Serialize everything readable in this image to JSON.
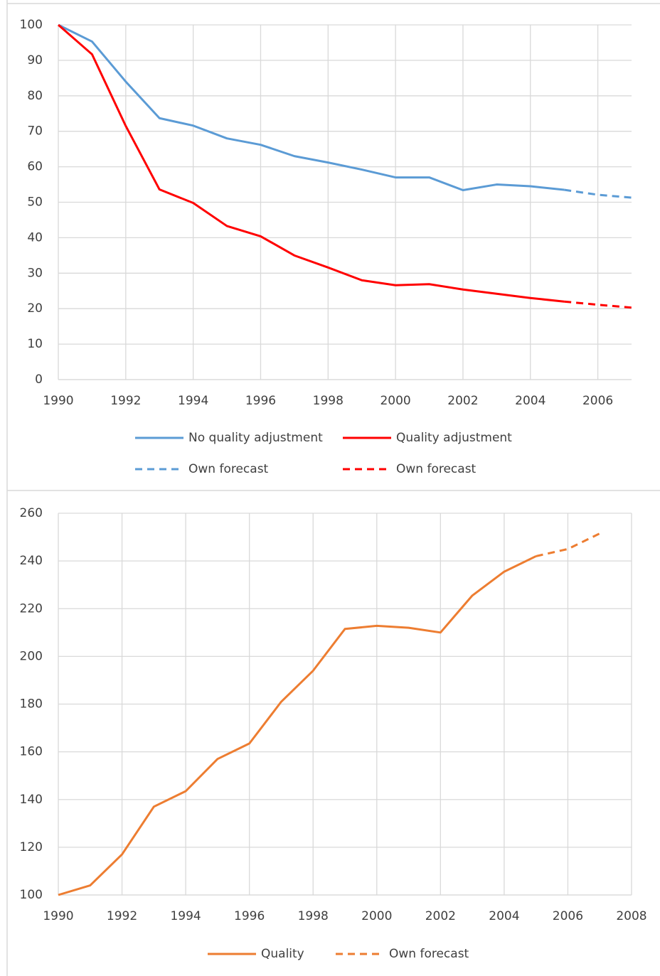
{
  "chart_data": [
    {
      "type": "line",
      "x": [
        1990,
        1991,
        1992,
        1993,
        1994,
        1995,
        1996,
        1997,
        1998,
        1999,
        2000,
        2001,
        2002,
        2003,
        2004,
        2005,
        2006,
        2007
      ],
      "xlim": [
        1990,
        2007
      ],
      "xticks": [
        1990,
        1992,
        1994,
        1996,
        1998,
        2000,
        2002,
        2004,
        2006
      ],
      "ylim": [
        0,
        100
      ],
      "yticks": [
        0,
        10,
        20,
        30,
        40,
        50,
        60,
        70,
        80,
        90,
        100
      ],
      "grid": true,
      "series": [
        {
          "name": "No quality adjustment",
          "color": "#5b9bd5",
          "dashed": false,
          "values": [
            100,
            95.3,
            84,
            73.7,
            71.6,
            68,
            66.2,
            63,
            61.2,
            59.2,
            57,
            57,
            53.4,
            55,
            54.5,
            53.5,
            null,
            null
          ]
        },
        {
          "name": "Quality adjustment",
          "color": "#ff0000",
          "dashed": false,
          "values": [
            100,
            91.7,
            71.5,
            53.6,
            49.8,
            43.3,
            40.4,
            35,
            31.6,
            28,
            26.6,
            26.9,
            25.4,
            24.2,
            23,
            22,
            null,
            null
          ]
        },
        {
          "name": "Own forecast",
          "color": "#5b9bd5",
          "dashed": true,
          "values": [
            null,
            null,
            null,
            null,
            null,
            null,
            null,
            null,
            null,
            null,
            null,
            null,
            null,
            null,
            null,
            53.5,
            52.1,
            51.3
          ]
        },
        {
          "name": "Own forecast",
          "color": "#ff0000",
          "dashed": true,
          "values": [
            null,
            null,
            null,
            null,
            null,
            null,
            null,
            null,
            null,
            null,
            null,
            null,
            null,
            null,
            null,
            22,
            21.1,
            20.3
          ]
        }
      ]
    },
    {
      "type": "line",
      "x": [
        1990,
        1991,
        1992,
        1993,
        1994,
        1995,
        1996,
        1997,
        1998,
        1999,
        2000,
        2001,
        2002,
        2003,
        2004,
        2005,
        2006,
        2007
      ],
      "xlim": [
        1990,
        2008
      ],
      "xticks": [
        1990,
        1992,
        1994,
        1996,
        1998,
        2000,
        2002,
        2004,
        2006,
        2008
      ],
      "ylim": [
        100,
        260
      ],
      "yticks": [
        100,
        120,
        140,
        160,
        180,
        200,
        220,
        240,
        260
      ],
      "grid": true,
      "series": [
        {
          "name": "Quality",
          "color": "#ed7d31",
          "dashed": false,
          "values": [
            100,
            104,
            117,
            137,
            143.5,
            157,
            163.5,
            181,
            194,
            211.5,
            212.8,
            212,
            210,
            225.5,
            235.5,
            242,
            null,
            null
          ]
        },
        {
          "name": "Own forecast",
          "color": "#ed7d31",
          "dashed": true,
          "values": [
            null,
            null,
            null,
            null,
            null,
            null,
            null,
            null,
            null,
            null,
            null,
            null,
            null,
            null,
            null,
            242,
            245,
            251.5
          ]
        }
      ]
    }
  ]
}
